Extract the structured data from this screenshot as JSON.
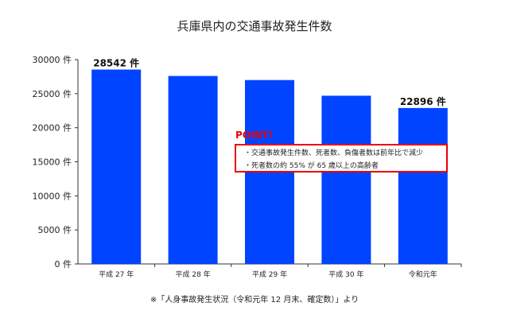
{
  "chart_data": {
    "type": "bar",
    "title": "兵庫県内の交通事故発生件数",
    "categories": [
      "平成 27 年",
      "平成 28 年",
      "平成 29 年",
      "平成 30 年",
      "令和元年"
    ],
    "values": [
      28542,
      27600,
      27000,
      24700,
      22896
    ],
    "data_labels": [
      "28542 件",
      "",
      "",
      "",
      "22896 件"
    ],
    "ylim": [
      0,
      30000
    ],
    "yticks": [
      "0 件",
      "5000 件",
      "10000 件",
      "15000 件",
      "20000 件",
      "25000 件",
      "30000 件"
    ],
    "bar_color": "#0044ff",
    "grid": false,
    "annotation": {
      "heading": "POINT!",
      "lines": [
        "・交通事故発生件数、死者数、負傷者数は前年比で減少",
        "・死者数の約 55% が 65 歳以上の高齢者"
      ],
      "color": "#ee0000"
    },
    "source_note": "※「人身事故発生状況（令和元年 12 月末、確定数）」より"
  }
}
